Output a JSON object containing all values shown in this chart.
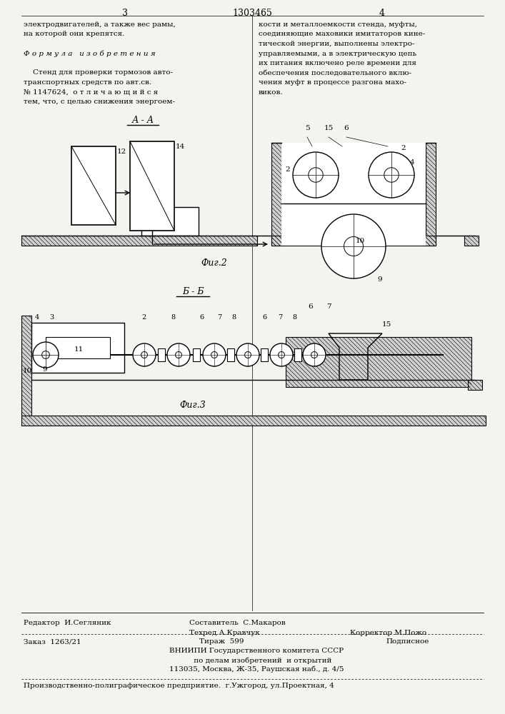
{
  "bg_color": "#f5f3ef",
  "header": {
    "left_num": "3",
    "center_num": "1303465",
    "right_num": "4"
  },
  "left_col_text": [
    "электродвигателей, а также вес рамы,",
    "на которой они крепятся.",
    "",
    "Ф о р м у л а   и з о б р е т е н и я",
    "",
    "    Стенд для проверки тормозов авто-",
    "транспортных средств по авт.св.",
    "№ 1147624,  о т л и ч а ю щ и й с я",
    "тем, что, с целью снижения энергоем-"
  ],
  "right_col_text": [
    "кости и металлоемкости стенда, муфты,",
    "соединяющие маховики имитаторов кине-",
    "тической энергии, выполнены электро-",
    "управляемыми, а в электрическую цепь",
    "их питания включено реле времени для",
    "обеспечения последовательного вклю-",
    "чения муфт в процессе разгона махо-",
    "виков."
  ],
  "fig2_label": "А - А",
  "fig2_caption": "Фиг.2",
  "fig3_label": "Б - Б",
  "fig3_caption": "Фиг.3",
  "footer_redaktor": "Редактор  И.Сегляник",
  "footer_sostavitel": "Составитель  С.Макаров",
  "footer_techred": "Техред А.Кравчук",
  "footer_korrektor": "Корректор М.Пожо",
  "footer_zakaz": "Заказ  1263/21",
  "footer_tirazh": "Тираж  599",
  "footer_podpisnoe": "Подписное",
  "footer_vniip1": "    ВНИИПИ Государственного комитета СССР",
  "footer_vniip2": "         по делам изобретений  и открытий",
  "footer_vniip3": "    113035, Москва, Ж-35, Раушская наб., д. 4/5",
  "footer_predpr": "Производственно-полиграфическое предприятие.  г.Ужгород, ул.Проектная, 4"
}
